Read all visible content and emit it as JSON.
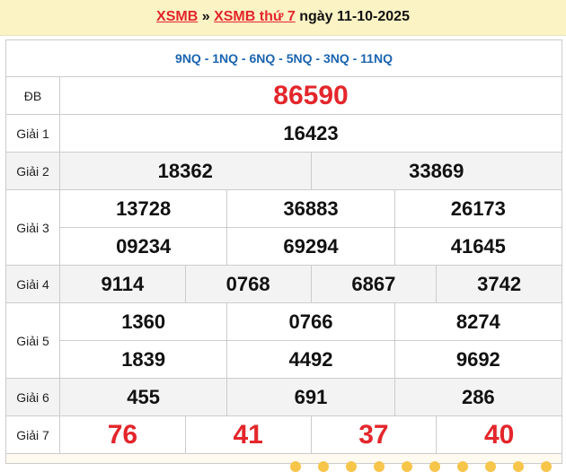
{
  "header": {
    "link1": "XSMB",
    "sep": " » ",
    "link2": "XSMB thứ 7",
    "date_text": " ngày 11-10-2025"
  },
  "codes": "9NQ - 1NQ - 6NQ - 5NQ - 3NQ - 11NQ",
  "prizes": {
    "db": {
      "label": "ĐB",
      "values": [
        "86590"
      ]
    },
    "g1": {
      "label": "Giải 1",
      "values": [
        "16423"
      ]
    },
    "g2": {
      "label": "Giải 2",
      "values": [
        "18362",
        "33869"
      ]
    },
    "g3": {
      "label": "Giải 3",
      "values": [
        "13728",
        "36883",
        "26173",
        "09234",
        "69294",
        "41645"
      ]
    },
    "g4": {
      "label": "Giải 4",
      "values": [
        "9114",
        "0768",
        "6867",
        "3742"
      ]
    },
    "g5": {
      "label": "Giải 5",
      "values": [
        "1360",
        "0766",
        "8274",
        "1839",
        "4492",
        "9692"
      ]
    },
    "g6": {
      "label": "Giải 6",
      "values": [
        "455",
        "691",
        "286"
      ]
    },
    "g7": {
      "label": "Giải 7",
      "values": [
        "76",
        "41",
        "37",
        "40"
      ]
    }
  },
  "colors": {
    "accent_red": "#e3262b",
    "codes_blue": "#1b64b0",
    "header_bg": "#fcf3c5"
  }
}
